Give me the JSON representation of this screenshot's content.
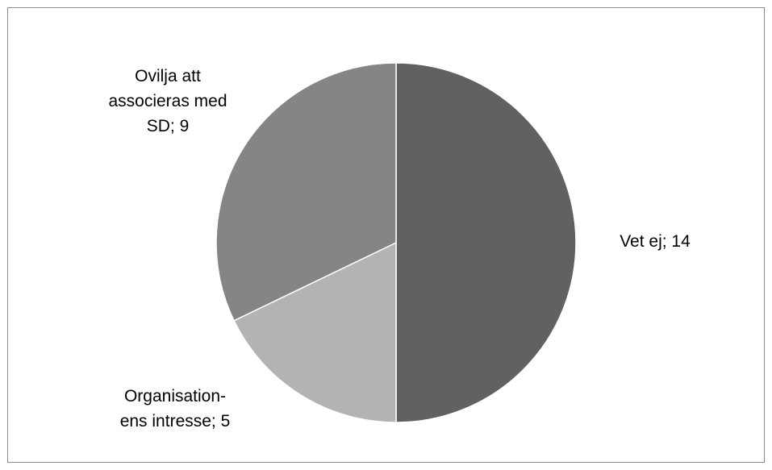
{
  "chart_data": {
    "type": "pie",
    "title": "",
    "start_angle_deg": 0,
    "direction": "clockwise",
    "slices": [
      {
        "label_lines": [
          "Vet ej; 14"
        ],
        "value": 14,
        "color": "#616161"
      },
      {
        "label_lines": [
          "Organisation-",
          "ens intresse; 5"
        ],
        "value": 5,
        "color": "#b3b3b3"
      },
      {
        "label_lines": [
          "Ovilja att",
          "associeras med",
          "SD; 9"
        ],
        "value": 9,
        "color": "#858585"
      }
    ],
    "legend": "none"
  }
}
